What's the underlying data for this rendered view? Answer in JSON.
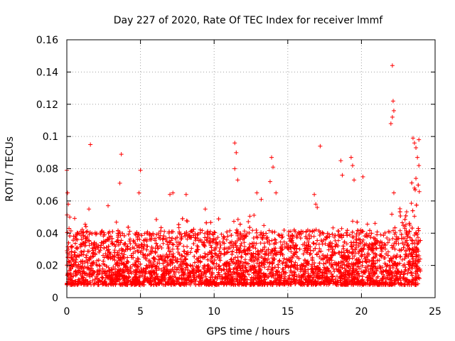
{
  "chart_data": {
    "type": "scatter",
    "title": "Day 227 of 2020, Rate Of TEC Index for receiver lmmf",
    "xlabel": "GPS time / hours",
    "ylabel": "ROTI / TECUs",
    "xlim": [
      0,
      25
    ],
    "ylim": [
      0,
      0.16
    ],
    "xticks": [
      0,
      5,
      10,
      15,
      20,
      25
    ],
    "yticks": [
      0,
      0.02,
      0.04,
      0.06,
      0.08,
      0.1,
      0.12,
      0.14,
      0.16
    ],
    "ytick_labels": [
      "0",
      "0.02",
      "0.04",
      "0.06",
      "0.08",
      "0.1",
      "0.12",
      "0.14",
      "0.16"
    ],
    "grid": true,
    "marker": "+",
    "color": "#ff0000",
    "series": [
      {
        "x": [
          0.0,
          0.05,
          0.1,
          0.15,
          1.6,
          3.7,
          3.6,
          4.9,
          5.0,
          7.0,
          7.2,
          8.1,
          11.4,
          11.5,
          11.4,
          11.6,
          13.9,
          14.0,
          13.8,
          14.2,
          17.2,
          18.6,
          18.7,
          19.3,
          19.4,
          19.5,
          20.1,
          22.1,
          22.15,
          22.2,
          22.1,
          22.0,
          22.2,
          23.5,
          23.6,
          23.7,
          23.8,
          23.9,
          23.7,
          23.6,
          23.9,
          2.8,
          9.4,
          16.8,
          16.9,
          17.0,
          12.9,
          13.2,
          1.5,
          0.2
        ],
        "y": [
          0.079,
          0.065,
          0.058,
          0.043,
          0.095,
          0.089,
          0.071,
          0.065,
          0.079,
          0.064,
          0.065,
          0.064,
          0.096,
          0.09,
          0.08,
          0.073,
          0.087,
          0.081,
          0.072,
          0.065,
          0.094,
          0.085,
          0.076,
          0.087,
          0.082,
          0.073,
          0.075,
          0.144,
          0.122,
          0.116,
          0.112,
          0.108,
          0.065,
          0.099,
          0.096,
          0.093,
          0.087,
          0.082,
          0.074,
          0.068,
          0.098,
          0.057,
          0.055,
          0.064,
          0.058,
          0.056,
          0.065,
          0.061,
          0.055,
          0.05
        ]
      }
    ],
    "bulk": {
      "description": "",
      "x_range": [
        0,
        24
      ],
      "y_min": 0.002,
      "y_typical_max": 0.05
    }
  }
}
